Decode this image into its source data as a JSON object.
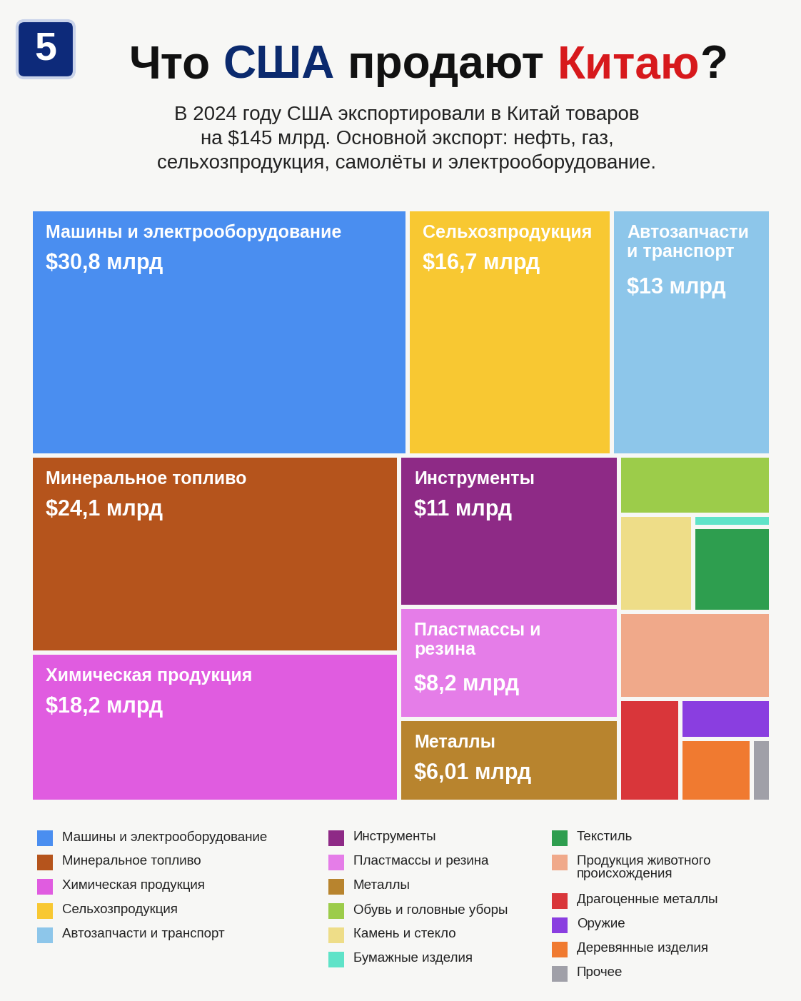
{
  "badge": "5",
  "chart_data": {
    "type": "treemap",
    "title": [
      {
        "text": "Что",
        "color": "#111111"
      },
      {
        "text": "США",
        "color": "#0b2a6e"
      },
      {
        "text": "продают",
        "color": "#111111"
      },
      {
        "text": "Китаю",
        "color": "#d7191c"
      },
      {
        "text": "?",
        "color": "#111111"
      }
    ],
    "subtitle": "В 2024 году США экспортировали в Китай товаров\nна $145 млрд. Основной экспорт: нефть, газ,\nсельхозпродукция, самолёты и электрооборудование.",
    "categories": [
      "Машины и электрооборудование",
      "Минеральное топливо",
      "Химическая продукция",
      "Сельхозпродукция",
      "Автозапчасти и транспорт",
      "Инструменты",
      "Пластмассы и резина",
      "Металлы",
      "Обувь и головные уборы",
      "Камень и стекло",
      "Бумажные изделия",
      "Текстиль",
      "Продукция животного происхождения",
      "Драгоценные металлы",
      "Оружие",
      "Деревянные изделия",
      "Прочее"
    ],
    "values": [
      30.8,
      24.1,
      18.2,
      16.7,
      13,
      11,
      8.2,
      6.01,
      3.0,
      2.4,
      0.3,
      2.2,
      4.4,
      2.1,
      1.2,
      1.5,
      0.4
    ],
    "value_labels": [
      "$30,8 млрд",
      "$24,1 млрд",
      "$18,2 млрд",
      "$16,7 млрд",
      "$13 млрд",
      "$11 млрд",
      "$8,2 млрд",
      "$6,01 млрд",
      null,
      null,
      null,
      null,
      null,
      null,
      null,
      null,
      null
    ],
    "colors": [
      "#4a8ef0",
      "#b5541c",
      "#e05ce0",
      "#f8c832",
      "#8dc6ea",
      "#8e2a86",
      "#e57de8",
      "#b8842e",
      "#9ccc4a",
      "#eedd88",
      "#5fe3c8",
      "#2e9e4f",
      "#f0a98a",
      "#d9363a",
      "#8a3ee0",
      "#f07a30",
      "#a0a0a8"
    ],
    "data_labels": true,
    "legend": "bottom"
  }
}
